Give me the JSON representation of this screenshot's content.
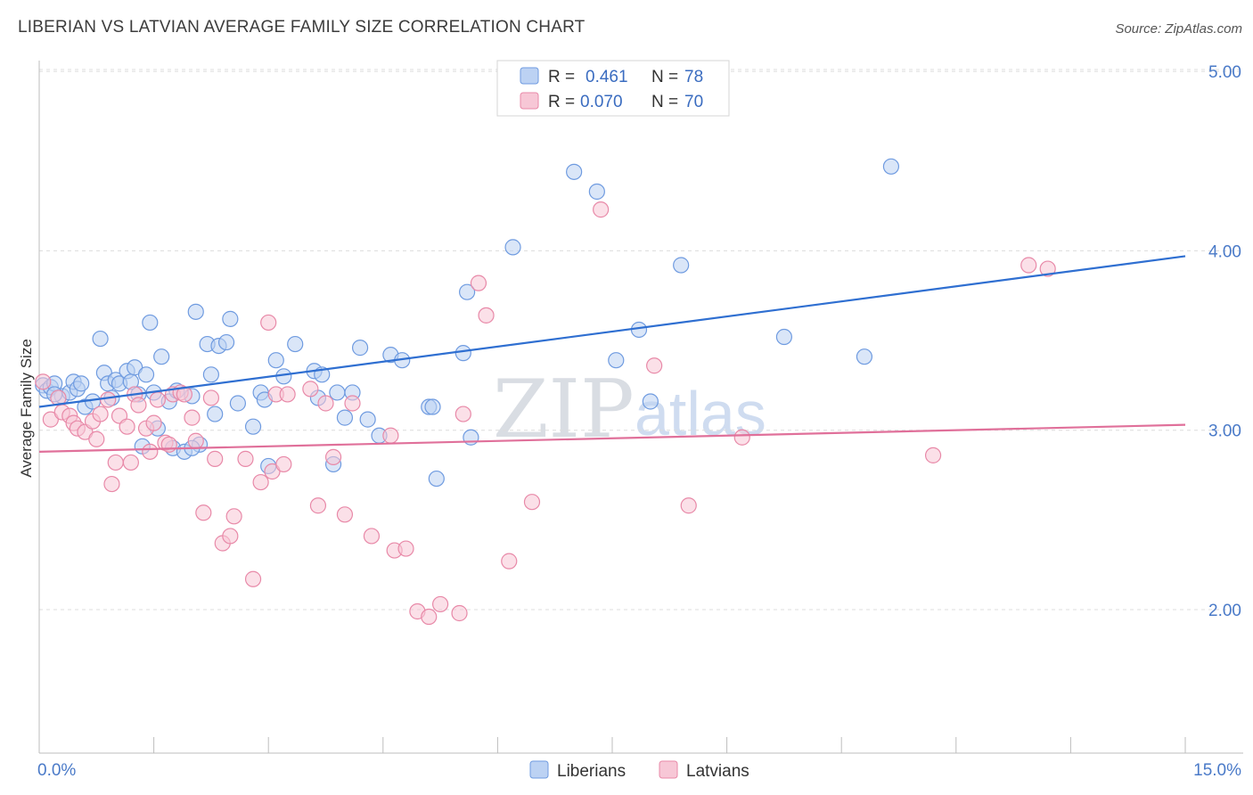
{
  "header": {
    "title": "LIBERIAN VS LATVIAN AVERAGE FAMILY SIZE CORRELATION CHART",
    "source": "Source: ZipAtlas.com"
  },
  "watermark": {
    "zip": "ZIP",
    "atlas": "atlas"
  },
  "legend": {
    "rows": [
      {
        "r_label": "R =",
        "r_value": "0.461",
        "n_label": "N =",
        "n_value": "78",
        "color": "#6f9be0",
        "fill": "#bcd2f3"
      },
      {
        "r_label": "R =",
        "r_value": "0.070",
        "n_label": "N =",
        "n_value": "70",
        "color": "#e889a8",
        "fill": "#f7c7d6"
      }
    ]
  },
  "bottom_legend": [
    {
      "label": "Liberians",
      "color": "#6f9be0",
      "fill": "#bcd2f3"
    },
    {
      "label": "Latvians",
      "color": "#e889a8",
      "fill": "#f7c7d6"
    }
  ],
  "chart_data": {
    "type": "scatter",
    "title": "LIBERIAN VS LATVIAN AVERAGE FAMILY SIZE CORRELATION CHART",
    "xlabel": "",
    "ylabel": "Average Family Size",
    "xlim": [
      0,
      15
    ],
    "ylim": [
      1.2,
      5.1
    ],
    "x_ticks_labeled": [
      {
        "value": 0,
        "label": "0.0%"
      },
      {
        "value": 15,
        "label": "15.0%"
      }
    ],
    "x_minor_ticks": [
      0,
      1.5,
      3,
      4.5,
      6,
      7.5,
      9,
      10.5,
      12,
      13.5,
      15
    ],
    "y_ticks": [
      {
        "value": 2.0,
        "label": "2.00"
      },
      {
        "value": 3.0,
        "label": "3.00"
      },
      {
        "value": 4.0,
        "label": "4.00"
      },
      {
        "value": 5.0,
        "label": "5.00"
      }
    ],
    "grid": "horizontal-dashed",
    "legend_position": "top-center",
    "series": [
      {
        "name": "Liberians",
        "color": "#6f9be0",
        "fill": "#bcd2f3",
        "trend": {
          "x": [
            0,
            15
          ],
          "y": [
            3.13,
            3.97
          ],
          "color": "#2f6fd1"
        },
        "points": [
          [
            0.05,
            3.25
          ],
          [
            0.1,
            3.22
          ],
          [
            0.15,
            3.24
          ],
          [
            0.2,
            3.26
          ],
          [
            0.3,
            3.19
          ],
          [
            0.4,
            3.21
          ],
          [
            0.45,
            3.27
          ],
          [
            0.5,
            3.23
          ],
          [
            0.55,
            3.26
          ],
          [
            0.6,
            3.13
          ],
          [
            0.7,
            3.16
          ],
          [
            0.8,
            3.51
          ],
          [
            0.85,
            3.32
          ],
          [
            0.9,
            3.26
          ],
          [
            0.95,
            3.18
          ],
          [
            1.0,
            3.28
          ],
          [
            1.05,
            3.26
          ],
          [
            1.15,
            3.33
          ],
          [
            1.2,
            3.27
          ],
          [
            1.25,
            3.35
          ],
          [
            1.3,
            3.2
          ],
          [
            1.35,
            2.91
          ],
          [
            1.4,
            3.31
          ],
          [
            1.45,
            3.6
          ],
          [
            1.5,
            3.21
          ],
          [
            1.55,
            3.01
          ],
          [
            1.6,
            3.41
          ],
          [
            1.7,
            3.16
          ],
          [
            1.75,
            2.9
          ],
          [
            1.8,
            3.22
          ],
          [
            1.9,
            2.88
          ],
          [
            2.0,
            3.19
          ],
          [
            2.05,
            3.66
          ],
          [
            2.1,
            2.92
          ],
          [
            2.2,
            3.48
          ],
          [
            2.25,
            3.31
          ],
          [
            2.3,
            3.09
          ],
          [
            2.35,
            3.47
          ],
          [
            2.45,
            3.49
          ],
          [
            2.5,
            3.62
          ],
          [
            2.6,
            3.15
          ],
          [
            2.8,
            3.02
          ],
          [
            2.9,
            3.21
          ],
          [
            2.95,
            3.17
          ],
          [
            3.0,
            2.8
          ],
          [
            3.1,
            3.39
          ],
          [
            3.2,
            3.3
          ],
          [
            3.35,
            3.48
          ],
          [
            3.6,
            3.33
          ],
          [
            3.65,
            3.18
          ],
          [
            3.7,
            3.31
          ],
          [
            3.85,
            2.81
          ],
          [
            3.9,
            3.21
          ],
          [
            4.0,
            3.07
          ],
          [
            4.1,
            3.21
          ],
          [
            4.2,
            3.46
          ],
          [
            4.3,
            3.06
          ],
          [
            4.45,
            2.97
          ],
          [
            4.6,
            3.42
          ],
          [
            4.75,
            3.39
          ],
          [
            5.1,
            3.13
          ],
          [
            5.15,
            3.13
          ],
          [
            5.2,
            2.73
          ],
          [
            5.55,
            3.43
          ],
          [
            5.6,
            3.77
          ],
          [
            5.65,
            2.96
          ],
          [
            6.2,
            4.02
          ],
          [
            7.0,
            4.44
          ],
          [
            7.3,
            4.33
          ],
          [
            7.55,
            3.39
          ],
          [
            7.85,
            3.56
          ],
          [
            8.0,
            3.16
          ],
          [
            8.4,
            3.92
          ],
          [
            9.75,
            3.52
          ],
          [
            10.8,
            3.41
          ],
          [
            11.15,
            4.47
          ],
          [
            0.2,
            3.2
          ],
          [
            2.0,
            2.9
          ]
        ]
      },
      {
        "name": "Latvians",
        "color": "#e889a8",
        "fill": "#f7c7d6",
        "trend": {
          "x": [
            0,
            15
          ],
          "y": [
            2.88,
            3.03
          ],
          "color": "#e0709a"
        },
        "points": [
          [
            0.05,
            3.27
          ],
          [
            0.15,
            3.06
          ],
          [
            0.25,
            3.18
          ],
          [
            0.3,
            3.1
          ],
          [
            0.4,
            3.08
          ],
          [
            0.45,
            3.04
          ],
          [
            0.5,
            3.01
          ],
          [
            0.6,
            2.99
          ],
          [
            0.7,
            3.05
          ],
          [
            0.75,
            2.95
          ],
          [
            0.8,
            3.09
          ],
          [
            0.9,
            3.17
          ],
          [
            0.95,
            2.7
          ],
          [
            1.0,
            2.82
          ],
          [
            1.05,
            3.08
          ],
          [
            1.15,
            3.02
          ],
          [
            1.2,
            2.82
          ],
          [
            1.25,
            3.2
          ],
          [
            1.3,
            3.14
          ],
          [
            1.4,
            3.01
          ],
          [
            1.45,
            2.88
          ],
          [
            1.5,
            3.04
          ],
          [
            1.55,
            3.17
          ],
          [
            1.65,
            2.93
          ],
          [
            1.7,
            2.92
          ],
          [
            1.75,
            3.2
          ],
          [
            1.85,
            3.21
          ],
          [
            1.9,
            3.2
          ],
          [
            2.0,
            3.07
          ],
          [
            2.05,
            2.94
          ],
          [
            2.15,
            2.54
          ],
          [
            2.25,
            3.18
          ],
          [
            2.3,
            2.84
          ],
          [
            2.4,
            2.37
          ],
          [
            2.5,
            2.41
          ],
          [
            2.55,
            2.52
          ],
          [
            2.7,
            2.84
          ],
          [
            2.8,
            2.17
          ],
          [
            2.9,
            2.71
          ],
          [
            3.0,
            3.6
          ],
          [
            3.05,
            2.77
          ],
          [
            3.1,
            3.2
          ],
          [
            3.2,
            2.81
          ],
          [
            3.25,
            3.2
          ],
          [
            3.55,
            3.23
          ],
          [
            3.65,
            2.58
          ],
          [
            3.75,
            3.15
          ],
          [
            3.85,
            2.85
          ],
          [
            4.0,
            2.53
          ],
          [
            4.1,
            3.15
          ],
          [
            4.35,
            2.41
          ],
          [
            4.6,
            2.97
          ],
          [
            4.65,
            2.33
          ],
          [
            4.8,
            2.34
          ],
          [
            4.95,
            1.99
          ],
          [
            5.1,
            1.96
          ],
          [
            5.25,
            2.03
          ],
          [
            5.5,
            1.98
          ],
          [
            5.55,
            3.09
          ],
          [
            5.75,
            3.82
          ],
          [
            5.85,
            3.64
          ],
          [
            6.15,
            2.27
          ],
          [
            6.45,
            2.6
          ],
          [
            7.35,
            4.23
          ],
          [
            8.05,
            3.36
          ],
          [
            8.5,
            2.58
          ],
          [
            9.2,
            2.96
          ],
          [
            11.7,
            2.86
          ],
          [
            12.95,
            3.92
          ],
          [
            13.2,
            3.9
          ]
        ]
      }
    ]
  }
}
